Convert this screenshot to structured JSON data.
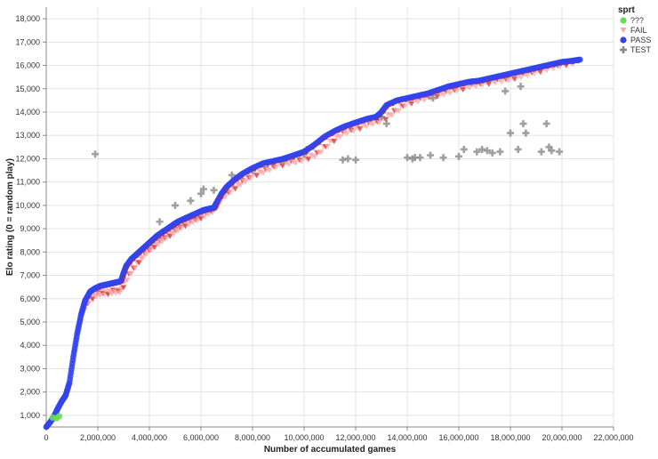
{
  "chart_data": {
    "type": "scatter",
    "title": "",
    "xlabel": "Number of accumulated games",
    "ylabel": "Elo rating (0 = random play)",
    "xlim": [
      0,
      22000000
    ],
    "ylim": [
      500,
      18500
    ],
    "x_ticks": [
      0,
      2000000,
      4000000,
      6000000,
      8000000,
      10000000,
      12000000,
      14000000,
      16000000,
      18000000,
      20000000,
      22000000
    ],
    "x_tick_labels": [
      "0",
      "2,000,000",
      "4,000,000",
      "6,000,000",
      "8,000,000",
      "10,000,000",
      "12,000,000",
      "14,000,000",
      "16,000,000",
      "18,000,000",
      "20,000,000",
      "22,000,000"
    ],
    "y_ticks": [
      1000,
      2000,
      3000,
      4000,
      5000,
      6000,
      7000,
      8000,
      9000,
      10000,
      11000,
      12000,
      13000,
      14000,
      15000,
      16000,
      17000,
      18000
    ],
    "y_tick_labels": [
      "1,000",
      "2,000",
      "3,000",
      "4,000",
      "5,000",
      "6,000",
      "7,000",
      "8,000",
      "9,000",
      "10,000",
      "11,000",
      "12,000",
      "13,000",
      "14,000",
      "15,000",
      "16,000",
      "17,000",
      "18,000"
    ],
    "grid": true,
    "legend": {
      "title": "sprt",
      "placement": "top-right",
      "entries": [
        {
          "label": "???",
          "color": "#66dd55",
          "marker": "circle"
        },
        {
          "label": "FAIL",
          "color": "#f4a6a6",
          "marker": "triangle-down"
        },
        {
          "label": "PASS",
          "color": "#3344ee",
          "marker": "circle"
        },
        {
          "label": "TEST",
          "color": "#888888",
          "marker": "cross"
        }
      ]
    },
    "pass_curve": {
      "x": [
        0,
        150000,
        300000,
        450000,
        600000,
        750000,
        900000,
        1050000,
        1200000,
        1350000,
        1500000,
        1700000,
        1900000,
        2100000,
        2300000,
        2500000,
        2700000,
        2900000,
        3000000,
        3100000,
        3300000,
        3500000,
        3700000,
        3900000,
        4100000,
        4300000,
        4500000,
        4700000,
        4900000,
        5100000,
        5300000,
        5500000,
        5700000,
        5900000,
        6100000,
        6300000,
        6500000,
        6600000,
        6800000,
        7000000,
        7300000,
        7600000,
        8000000,
        8400000,
        8800000,
        9200000,
        9600000,
        10000000,
        10400000,
        10800000,
        11200000,
        11600000,
        12000000,
        12400000,
        12800000,
        13000000,
        13200000,
        13600000,
        14000000,
        14400000,
        14800000,
        15200000,
        15600000,
        16000000,
        16400000,
        16800000,
        17200000,
        17600000,
        18000000,
        18400000,
        18800000,
        19200000,
        19600000,
        20000000,
        20400000,
        20700000
      ],
      "y": [
        500,
        700,
        950,
        1300,
        1600,
        1850,
        2400,
        3500,
        4500,
        5300,
        5900,
        6300,
        6450,
        6550,
        6600,
        6650,
        6700,
        6750,
        7100,
        7400,
        7700,
        7900,
        8100,
        8300,
        8500,
        8700,
        8850,
        9000,
        9150,
        9300,
        9400,
        9500,
        9600,
        9700,
        9800,
        9850,
        9900,
        10100,
        10500,
        10800,
        11100,
        11350,
        11600,
        11800,
        11900,
        12000,
        12150,
        12300,
        12600,
        12950,
        13200,
        13400,
        13550,
        13700,
        13800,
        14000,
        14300,
        14500,
        14600,
        14700,
        14800,
        14950,
        15100,
        15200,
        15300,
        15350,
        15450,
        15550,
        15650,
        15750,
        15850,
        15950,
        16050,
        16150,
        16200,
        16250
      ]
    },
    "fail_curve": {
      "x": [
        1400000,
        1700000,
        2000000,
        2300000,
        2600000,
        2900000,
        3200000,
        3500000,
        3800000,
        4100000,
        4400000,
        4700000,
        5000000,
        5300000,
        5600000,
        5900000,
        6200000,
        6500000,
        6800000,
        7200000,
        7600000,
        8000000,
        8500000,
        9000000,
        9500000,
        10000000,
        10500000,
        11000000,
        11500000,
        12000000,
        12500000,
        13000000,
        13500000,
        14000000,
        14500000,
        15000000,
        15500000,
        16000000,
        16500000,
        17000000,
        17500000,
        18000000,
        18500000,
        19000000,
        19500000,
        20000000,
        20500000
      ],
      "y": [
        5400,
        6000,
        6200,
        6250,
        6300,
        6350,
        7000,
        7500,
        7900,
        8200,
        8450,
        8700,
        8900,
        9150,
        9300,
        9450,
        9650,
        9800,
        10300,
        10700,
        11000,
        11300,
        11500,
        11750,
        11850,
        12000,
        12200,
        12700,
        13100,
        13300,
        13500,
        13650,
        14000,
        14400,
        14550,
        14700,
        14850,
        15000,
        15150,
        15250,
        15350,
        15450,
        15600,
        15750,
        15900,
        16050,
        16150
      ]
    },
    "unknown_points": {
      "x": [
        250000,
        400000,
        500000
      ],
      "y": [
        900,
        880,
        960
      ]
    },
    "test_points": {
      "x": [
        1900000,
        4400000,
        5000000,
        5600000,
        6000000,
        6100000,
        6500000,
        7200000,
        8000000,
        8600000,
        9200000,
        9600000,
        10000000,
        10100000,
        11500000,
        11700000,
        12000000,
        13000000,
        14000000,
        14200000,
        14300000,
        14500000,
        14900000,
        15400000,
        16000000,
        16200000,
        16700000,
        16900000,
        17100000,
        17300000,
        17600000,
        18000000,
        18300000,
        18500000,
        18600000,
        19200000,
        19400000,
        19500000,
        19600000,
        19900000,
        13200000,
        15000000,
        17800000,
        18400000
      ],
      "y": [
        12200,
        9300,
        10000,
        10200,
        10500,
        10700,
        10650,
        11300,
        11500,
        11800,
        11900,
        12100,
        12200,
        12400,
        11950,
        12000,
        11950,
        13800,
        12050,
        12000,
        12050,
        12050,
        12150,
        12050,
        12100,
        12400,
        12300,
        12400,
        12350,
        12250,
        12300,
        13100,
        12400,
        13500,
        13100,
        12300,
        13500,
        12500,
        12350,
        12300,
        13500,
        14600,
        14900,
        15100
      ]
    }
  }
}
